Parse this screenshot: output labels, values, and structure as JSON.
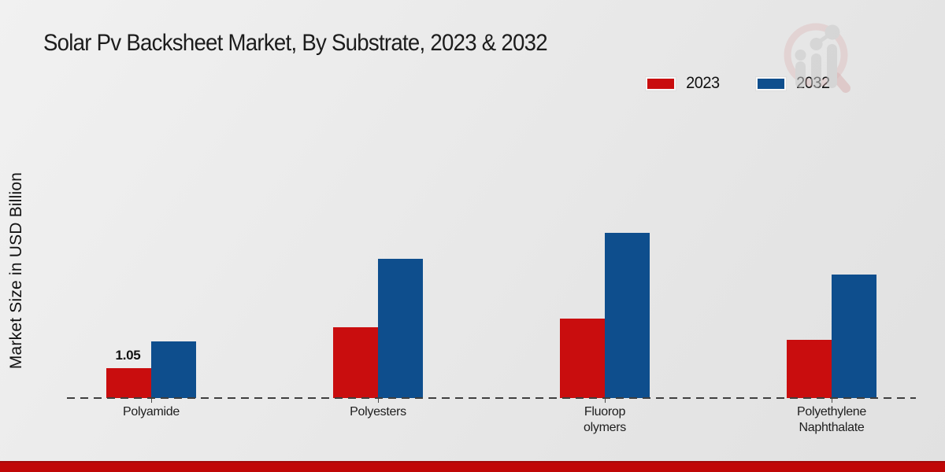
{
  "chart_data": {
    "type": "bar",
    "title": "Solar Pv Backsheet Market, By Substrate, 2023 & 2032",
    "ylabel": "Market Size in USD Billion",
    "xlabel": "",
    "categories": [
      {
        "label_lines": [
          "Polyamide"
        ]
      },
      {
        "label_lines": [
          "Polyesters"
        ]
      },
      {
        "label_lines": [
          "Fluorop",
          "olymers"
        ]
      },
      {
        "label_lines": [
          "Polyethylene",
          "Naphthalate"
        ]
      }
    ],
    "series": [
      {
        "name": "2023",
        "color": "#c90d0e",
        "values": [
          1.05,
          2.5,
          2.8,
          2.05
        ]
      },
      {
        "name": "2032",
        "color": "#0e4e8d",
        "values": [
          2.0,
          4.9,
          5.8,
          4.35
        ]
      }
    ],
    "value_labels": [
      {
        "series_index": 0,
        "category_index": 0,
        "text": "1.05"
      }
    ],
    "ylim": [
      0,
      6.5
    ],
    "grid": false,
    "legend_position": "top-right",
    "baseline_style": "dashed"
  },
  "branding": {
    "watermark_icon": "magnifier-bar-chart-logo",
    "watermark_glass_color": "#d9a8a8",
    "watermark_bars_color": "#c9c9c9",
    "footer_color": "#c00707"
  }
}
